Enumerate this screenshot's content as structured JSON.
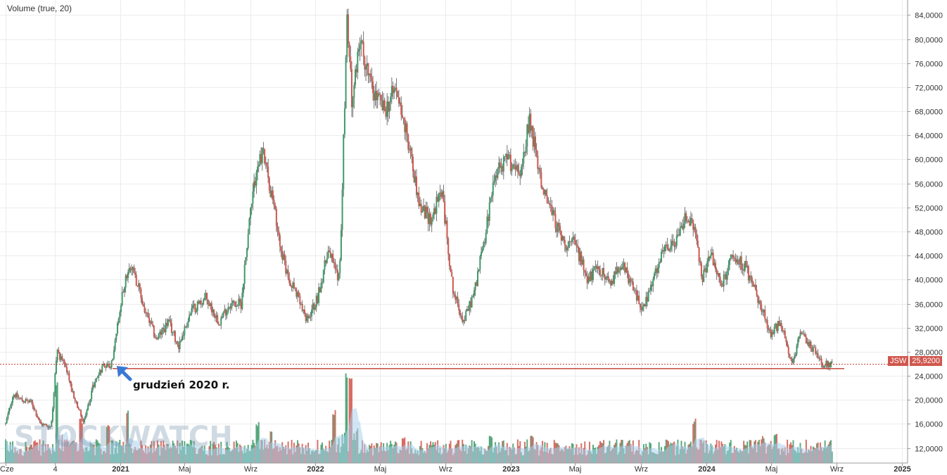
{
  "indicator_label": "Volume (true, 20)",
  "annotation": {
    "text": "grudzień 2020 r.",
    "arrow_color": "#3a78d6"
  },
  "price_tag": {
    "ticker": "JSW",
    "price": "25,9200",
    "color": "#d0574d"
  },
  "watermark": "STOCKWATCH",
  "colors": {
    "up": "#3e9a68",
    "down": "#d0574d",
    "wick": "#555555",
    "volume_ma": "#a9d2ee",
    "grid": "#ececec",
    "support": "#c0392b"
  },
  "chart_data": {
    "type": "candlestick",
    "title": "",
    "ticker": "JSW",
    "last_price": 25.92,
    "ylim": [
      9.5,
      86.5
    ],
    "y_ticks": [
      "12,0000",
      "16,0000",
      "20,0000",
      "24,0000",
      "28,0000",
      "32,0000",
      "36,0000",
      "40,0000",
      "44,0000",
      "48,0000",
      "52,0000",
      "56,0000",
      "60,0000",
      "64,0000",
      "68,0000",
      "72,0000",
      "76,0000",
      "80,0000",
      "84,0000"
    ],
    "y_tick_values": [
      12,
      16,
      20,
      24,
      28,
      32,
      36,
      40,
      44,
      48,
      52,
      56,
      60,
      64,
      68,
      72,
      76,
      80,
      84
    ],
    "x_ticks": [
      "Cze",
      "4",
      "2021",
      "Maj",
      "Wrz",
      "2022",
      "Maj",
      "Wrz",
      "2023",
      "Maj",
      "Wrz",
      "2024",
      "Maj",
      "Wrz",
      "2025"
    ],
    "x_tick_dates": [
      "2020-06",
      "2020-09",
      "2021-01",
      "2021-05",
      "2021-09",
      "2022-01",
      "2022-05",
      "2022-09",
      "2023-01",
      "2023-05",
      "2023-09",
      "2024-01",
      "2024-05",
      "2024-09",
      "2025-01"
    ],
    "support_level": 25.2,
    "price_path": [
      [
        "2020-06-01",
        16
      ],
      [
        "2020-06-15",
        21
      ],
      [
        "2020-07-01",
        20
      ],
      [
        "2020-07-20",
        19.5
      ],
      [
        "2020-08-05",
        16
      ],
      [
        "2020-08-25",
        15.5
      ],
      [
        "2020-09-05",
        28
      ],
      [
        "2020-09-20",
        26
      ],
      [
        "2020-10-05",
        21
      ],
      [
        "2020-10-25",
        16
      ],
      [
        "2020-11-10",
        22
      ],
      [
        "2020-12-01",
        26
      ],
      [
        "2020-12-15",
        25.5
      ],
      [
        "2021-01-10",
        40
      ],
      [
        "2021-01-25",
        42
      ],
      [
        "2021-02-15",
        35
      ],
      [
        "2021-03-10",
        30
      ],
      [
        "2021-04-01",
        33
      ],
      [
        "2021-04-20",
        29
      ],
      [
        "2021-05-15",
        35
      ],
      [
        "2021-06-10",
        37
      ],
      [
        "2021-07-05",
        33
      ],
      [
        "2021-07-25",
        36
      ],
      [
        "2021-08-15",
        36
      ],
      [
        "2021-09-05",
        55
      ],
      [
        "2021-09-25",
        62
      ],
      [
        "2021-10-15",
        52
      ],
      [
        "2021-11-05",
        42
      ],
      [
        "2021-11-25",
        38
      ],
      [
        "2021-12-15",
        33
      ],
      [
        "2022-01-05",
        37
      ],
      [
        "2022-01-25",
        45
      ],
      [
        "2022-02-15",
        40
      ],
      [
        "2022-03-01",
        84
      ],
      [
        "2022-03-10",
        70
      ],
      [
        "2022-03-25",
        80
      ],
      [
        "2022-04-15",
        72
      ],
      [
        "2022-05-10",
        68
      ],
      [
        "2022-06-01",
        72
      ],
      [
        "2022-06-25",
        62
      ],
      [
        "2022-07-15",
        52
      ],
      [
        "2022-08-05",
        50
      ],
      [
        "2022-08-25",
        55
      ],
      [
        "2022-09-15",
        38
      ],
      [
        "2022-10-05",
        33
      ],
      [
        "2022-10-25",
        38
      ],
      [
        "2022-11-15",
        48
      ],
      [
        "2022-12-05",
        58
      ],
      [
        "2022-12-25",
        60
      ],
      [
        "2023-01-20",
        58
      ],
      [
        "2023-02-05",
        67
      ],
      [
        "2023-02-25",
        57
      ],
      [
        "2023-03-15",
        52
      ],
      [
        "2023-04-10",
        46
      ],
      [
        "2023-05-01",
        46
      ],
      [
        "2023-05-25",
        40
      ],
      [
        "2023-06-15",
        42
      ],
      [
        "2023-07-05",
        39
      ],
      [
        "2023-07-25",
        43
      ],
      [
        "2023-08-15",
        39
      ],
      [
        "2023-09-05",
        35
      ],
      [
        "2023-09-25",
        40
      ],
      [
        "2023-10-15",
        45
      ],
      [
        "2023-11-05",
        46
      ],
      [
        "2023-11-25",
        51
      ],
      [
        "2023-12-10",
        48
      ],
      [
        "2023-12-25",
        40
      ],
      [
        "2024-01-10",
        44
      ],
      [
        "2024-01-30",
        39
      ],
      [
        "2024-02-20",
        44
      ],
      [
        "2024-03-15",
        42
      ],
      [
        "2024-04-10",
        36
      ],
      [
        "2024-05-01",
        31
      ],
      [
        "2024-05-20",
        33
      ],
      [
        "2024-06-10",
        25.5
      ],
      [
        "2024-06-25",
        31
      ],
      [
        "2024-07-15",
        29
      ],
      [
        "2024-08-05",
        26
      ],
      [
        "2024-08-25",
        25.92
      ]
    ],
    "volume_spikes": [
      [
        "2020-09-05",
        0.95
      ],
      [
        "2020-10-20",
        0.5
      ],
      [
        "2020-12-10",
        0.45
      ],
      [
        "2021-01-15",
        0.6
      ],
      [
        "2021-09-15",
        0.45
      ],
      [
        "2021-10-10",
        0.35
      ],
      [
        "2022-02-05",
        0.6
      ],
      [
        "2022-02-28",
        1.0
      ],
      [
        "2022-03-08",
        0.95
      ],
      [
        "2022-03-20",
        0.4
      ],
      [
        "2022-06-15",
        0.3
      ],
      [
        "2022-11-25",
        0.3
      ],
      [
        "2023-02-10",
        0.3
      ],
      [
        "2023-12-10",
        0.5
      ],
      [
        "2024-04-15",
        0.3
      ],
      [
        "2024-05-10",
        0.35
      ]
    ]
  }
}
